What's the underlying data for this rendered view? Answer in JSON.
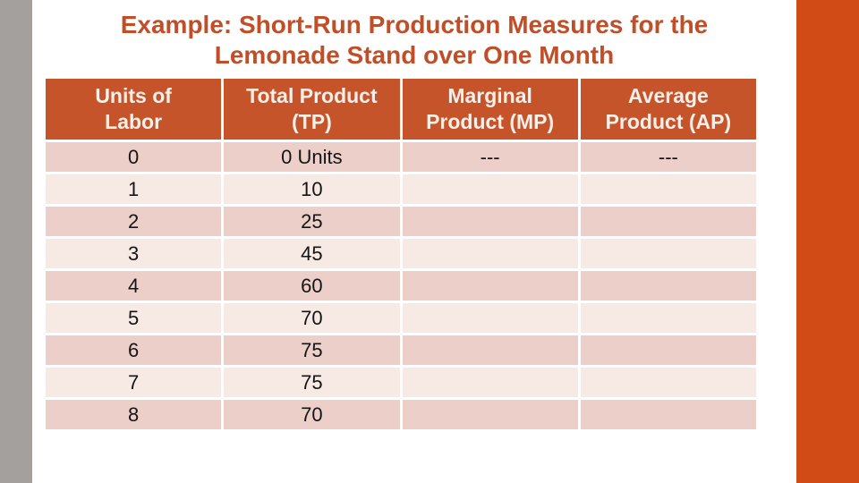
{
  "slide": {
    "title_line1": "Example: Short-Run Production Measures for the",
    "title_line2": "Lemonade Stand over One Month"
  },
  "colors": {
    "title_text": "#C04E28",
    "header_bg": "#C5542B",
    "header_text": "#F8F0E8",
    "row_dark": "#EDCFC9",
    "row_light": "#F7E9E4",
    "left_bar_gray": "#A3A09E",
    "right_bar_orange": "#D04B16"
  },
  "table": {
    "headers": [
      {
        "line1": "Units of",
        "line2": "Labor"
      },
      {
        "line1": "Total Product",
        "line2": "(TP)"
      },
      {
        "line1": "Marginal",
        "line2": "Product (MP)"
      },
      {
        "line1": "Average",
        "line2": "Product (AP)"
      }
    ],
    "rows": [
      [
        "0",
        "0 Units",
        "---",
        "---"
      ],
      [
        "1",
        "10",
        "",
        ""
      ],
      [
        "2",
        "25",
        "",
        ""
      ],
      [
        "3",
        "45",
        "",
        ""
      ],
      [
        "4",
        "60",
        "",
        ""
      ],
      [
        "5",
        "70",
        "",
        ""
      ],
      [
        "6",
        "75",
        "",
        ""
      ],
      [
        "7",
        "75",
        "",
        ""
      ],
      [
        "8",
        "70",
        "",
        ""
      ]
    ]
  }
}
